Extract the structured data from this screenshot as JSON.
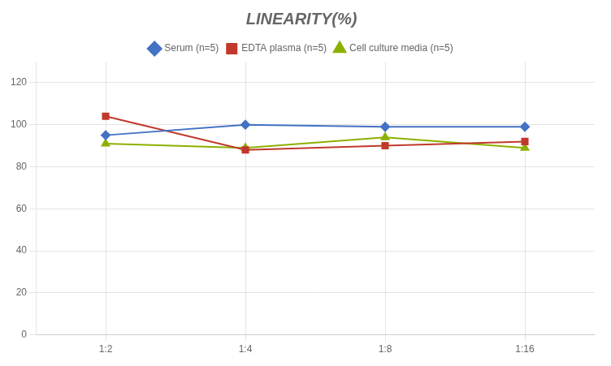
{
  "chart_data": {
    "type": "line",
    "title": "LINEARITY(%)",
    "categories": [
      "1:2",
      "1:4",
      "1:8",
      "1:16"
    ],
    "series": [
      {
        "name": "Serum (n=5)",
        "color": "#4472C4",
        "marker": "diamond",
        "values": [
          95,
          100,
          99,
          99
        ]
      },
      {
        "name": "EDTA plasma (n=5)",
        "color": "#C0392B",
        "marker": "square",
        "values": [
          104,
          88,
          90,
          92
        ]
      },
      {
        "name": "Cell culture media (n=5)",
        "color": "#8DB000",
        "marker": "triangle",
        "values": [
          91,
          89,
          94,
          89
        ]
      }
    ],
    "ylim": [
      0,
      130
    ],
    "yticks": [
      0,
      20,
      40,
      60,
      80,
      100,
      120
    ],
    "grid": true,
    "legend": "top"
  }
}
